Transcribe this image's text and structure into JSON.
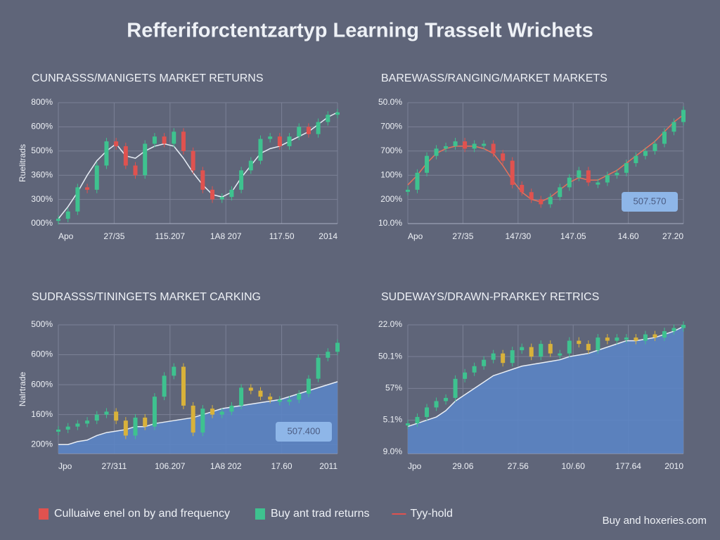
{
  "title": "Refferiforctentzartyp Learning Trasselt Wrichets",
  "chart_data": [
    {
      "type": "line",
      "title": "CUNRASSS/MANIGETS MARKET RETURNS",
      "ylabel": "Ruelitrads",
      "ylim": [
        0,
        5
      ],
      "yticks": [
        {
          "value": 5,
          "label": "800%"
        },
        {
          "value": 4,
          "label": "600%"
        },
        {
          "value": 3,
          "label": "500%"
        },
        {
          "value": 2,
          "label": "360%"
        },
        {
          "value": 1,
          "label": "300%"
        },
        {
          "value": 0,
          "label": "000%"
        }
      ],
      "xlim": [
        0,
        5
      ],
      "xticks": [
        {
          "value": 0,
          "label": "Apo"
        },
        {
          "value": 1,
          "label": "27/35"
        },
        {
          "value": 2,
          "label": "115.207"
        },
        {
          "value": 3,
          "label": "1A8 207"
        },
        {
          "value": 4,
          "label": "117.50"
        },
        {
          "value": 5,
          "label": "2014"
        }
      ],
      "series": [
        {
          "color": "#3ec28f",
          "down_color": "#e0524f",
          "values": [
            0.2,
            0.5,
            1.5,
            1.4,
            2.4,
            3.4,
            3.2,
            2.4,
            2.0,
            3.3,
            3.6,
            3.3,
            3.8,
            3.0,
            2.2,
            1.4,
            1.0,
            1.1,
            1.4,
            2.2,
            2.6,
            3.5,
            3.6,
            3.2,
            3.6,
            4.0,
            3.7,
            4.2,
            4.5,
            4.6
          ]
        },
        {
          "color": "#e8eef6",
          "values": [
            0.2,
            0.7,
            1.3,
            2.0,
            2.6,
            3.0,
            3.3,
            2.8,
            2.7,
            3.0,
            3.2,
            3.3,
            3.2,
            2.7,
            2.1,
            1.6,
            1.2,
            1.1,
            1.3,
            1.9,
            2.4,
            2.9,
            3.1,
            3.2,
            3.4,
            3.6,
            3.8,
            4.1,
            4.4,
            4.6
          ]
        }
      ]
    },
    {
      "type": "line",
      "title": "BAREWASS/RANGING/MARKET MARKETS",
      "ylim": [
        0,
        5
      ],
      "yticks": [
        {
          "value": 5,
          "label": "50.0%"
        },
        {
          "value": 4,
          "label": "700%"
        },
        {
          "value": 3,
          "label": "700%"
        },
        {
          "value": 2,
          "label": "100%"
        },
        {
          "value": 1,
          "label": "200%"
        },
        {
          "value": 0,
          "label": "10.0%"
        }
      ],
      "xlim": [
        0,
        5
      ],
      "xticks": [
        {
          "value": 0,
          "label": "Apo"
        },
        {
          "value": 1,
          "label": "27/35"
        },
        {
          "value": 2,
          "label": "147/30"
        },
        {
          "value": 3,
          "label": "147.05"
        },
        {
          "value": 4,
          "label": "14.60"
        },
        {
          "value": 5,
          "label": "27.20"
        }
      ],
      "annotation": "507.570",
      "series": [
        {
          "color": "#3ec28f",
          "down_color": "#e0524f",
          "values": [
            1.4,
            2.1,
            2.8,
            3.1,
            3.2,
            3.4,
            3.1,
            3.3,
            3.3,
            2.9,
            2.6,
            1.6,
            1.3,
            1.0,
            0.8,
            1.1,
            1.5,
            1.9,
            2.2,
            1.7,
            1.7,
            2.0,
            2.1,
            2.5,
            2.8,
            3.0,
            3.3,
            3.8,
            4.2,
            4.7
          ]
        },
        {
          "color": "#e8705a",
          "values": [
            1.6,
            2.0,
            2.5,
            2.9,
            3.1,
            3.2,
            3.2,
            3.2,
            3.1,
            2.9,
            2.4,
            1.8,
            1.3,
            1.0,
            0.9,
            1.1,
            1.4,
            1.7,
            1.9,
            1.8,
            1.8,
            2.0,
            2.2,
            2.5,
            2.8,
            3.1,
            3.4,
            3.8,
            4.2,
            4.5
          ]
        }
      ]
    },
    {
      "type": "area",
      "title": "SUDRASSS/TININGETS MARKET CARKING",
      "ylabel": "Nalrtrade",
      "ylim": [
        -0.3,
        4
      ],
      "yticks": [
        {
          "value": 4,
          "label": "500%"
        },
        {
          "value": 3,
          "label": "600%"
        },
        {
          "value": 2,
          "label": "600%"
        },
        {
          "value": 1,
          "label": "160%"
        },
        {
          "value": 0,
          "label": "200%"
        }
      ],
      "xlim": [
        0,
        5
      ],
      "xticks": [
        {
          "value": 0,
          "label": "Jpo"
        },
        {
          "value": 1,
          "label": "27/311"
        },
        {
          "value": 2,
          "label": "106.207"
        },
        {
          "value": 3,
          "label": "1A8 202"
        },
        {
          "value": 4,
          "label": "17.60"
        },
        {
          "value": 5,
          "label": "2011"
        }
      ],
      "annotation": "507.400",
      "series": [
        {
          "color": "#3ec28f",
          "down_color": "#d9b23a",
          "values": [
            0.5,
            0.6,
            0.7,
            0.8,
            1.0,
            1.1,
            0.8,
            0.3,
            0.9,
            0.6,
            1.6,
            2.3,
            2.6,
            1.3,
            0.4,
            1.2,
            1.0,
            1.1,
            1.3,
            1.9,
            1.8,
            1.6,
            1.5,
            1.5,
            1.5,
            1.7,
            2.2,
            2.9,
            3.1,
            3.4
          ]
        },
        {
          "color": "#e8eef6",
          "fill": "#5b84c4",
          "values": [
            0.0,
            0.0,
            0.1,
            0.15,
            0.3,
            0.4,
            0.45,
            0.5,
            0.6,
            0.6,
            0.7,
            0.75,
            0.8,
            0.85,
            0.9,
            1.0,
            1.1,
            1.2,
            1.25,
            1.3,
            1.35,
            1.4,
            1.45,
            1.5,
            1.6,
            1.7,
            1.8,
            1.9,
            2.0,
            2.1
          ]
        }
      ]
    },
    {
      "type": "area",
      "title": "SUDEWAYS/DRAWN-PRARKEY RETRICS",
      "ylim": [
        -0.05,
        4
      ],
      "yticks": [
        {
          "value": 4,
          "label": "22.0%"
        },
        {
          "value": 3,
          "label": "50.1%"
        },
        {
          "value": 2,
          "label": "57%"
        },
        {
          "value": 1,
          "label": "5.1%"
        },
        {
          "value": 0,
          "label": "9.0%"
        }
      ],
      "xlim": [
        0,
        5
      ],
      "xticks": [
        {
          "value": 0,
          "label": "Jpo"
        },
        {
          "value": 1,
          "label": "29.06"
        },
        {
          "value": 2,
          "label": "27.56"
        },
        {
          "value": 3,
          "label": "10/.60"
        },
        {
          "value": 4,
          "label": "177.64"
        },
        {
          "value": 5,
          "label": "2010"
        }
      ],
      "series": [
        {
          "color": "#3ec28f",
          "down_color": "#d9b23a",
          "values": [
            0.9,
            1.1,
            1.4,
            1.6,
            1.7,
            2.3,
            2.5,
            2.7,
            2.9,
            3.1,
            2.8,
            3.2,
            3.3,
            3.0,
            3.4,
            3.1,
            3.1,
            3.5,
            3.4,
            3.2,
            3.6,
            3.5,
            3.6,
            3.6,
            3.5,
            3.7,
            3.6,
            3.8,
            3.9,
            4.0
          ]
        },
        {
          "color": "#e8eef6",
          "fill": "#5b84c4",
          "values": [
            0.8,
            0.9,
            1.0,
            1.1,
            1.3,
            1.6,
            1.8,
            2.0,
            2.2,
            2.4,
            2.5,
            2.6,
            2.7,
            2.75,
            2.8,
            2.85,
            2.9,
            3.0,
            3.05,
            3.1,
            3.2,
            3.3,
            3.4,
            3.5,
            3.5,
            3.55,
            3.6,
            3.7,
            3.8,
            3.95
          ]
        }
      ]
    }
  ],
  "legend": [
    {
      "name": "Culluaive enel on by and frequency",
      "color": "#e0524f"
    },
    {
      "name": "Buy ant trad returns",
      "color": "#3ec28f"
    },
    {
      "name": "Tyy-hold",
      "color": "#e0524f",
      "line": true
    }
  ],
  "footer": "Buy and hoxeries.com"
}
